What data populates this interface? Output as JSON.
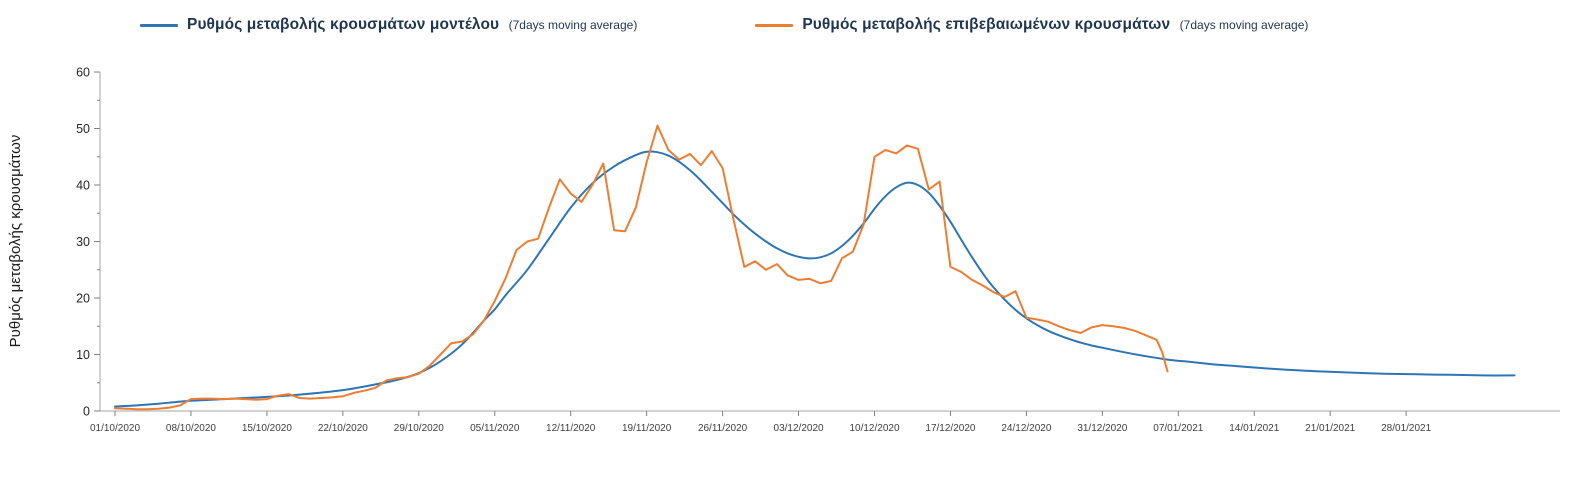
{
  "legend": {
    "items": [
      {
        "label": "Ρυθμός μεταβολής κρουσμάτων μοντέλου",
        "suffix": "(7days moving average)",
        "color": "#2E75B6"
      },
      {
        "label": "Ρυθμός μεταβολής επιβεβαιωμένων κρουσμάτων",
        "suffix": "(7days moving average)",
        "color": "#ED7D31"
      }
    ]
  },
  "chart_data": {
    "type": "line",
    "title": "",
    "xlabel": "",
    "ylabel": "Ρυθμός μεταβολής κρουσμάτων",
    "ylim": [
      0,
      60
    ],
    "y_major_ticks": [
      0,
      10,
      20,
      30,
      40,
      50,
      60
    ],
    "y_minor_tick_step": 5,
    "grid": false,
    "legend_position": "top",
    "x_tick_day_interval": 7,
    "x_tick_labels": [
      "01/10/2020",
      "08/10/2020",
      "15/10/2020",
      "22/10/2020",
      "29/10/2020",
      "05/11/2020",
      "12/11/2020",
      "19/11/2020",
      "26/11/2020",
      "03/12/2020",
      "10/12/2020",
      "17/12/2020",
      "24/12/2020",
      "31/12/2020",
      "07/01/2021",
      "14/01/2021",
      "21/01/2021",
      "28/01/2021"
    ],
    "series": [
      {
        "id": "model",
        "name": "Ρυθμός μεταβολής κρουσμάτων μοντέλου (7days moving average)",
        "color": "#2E75B6",
        "smooth": true,
        "points": [
          [
            0,
            0.8
          ],
          [
            2,
            1.0
          ],
          [
            4,
            1.3
          ],
          [
            7,
            1.8
          ],
          [
            10,
            2.1
          ],
          [
            14,
            2.5
          ],
          [
            17,
            2.9
          ],
          [
            21,
            3.7
          ],
          [
            24,
            4.7
          ],
          [
            26,
            5.5
          ],
          [
            28,
            6.7
          ],
          [
            30,
            8.8
          ],
          [
            32,
            11.8
          ],
          [
            34,
            16.0
          ],
          [
            35,
            18.0
          ],
          [
            36,
            20.5
          ],
          [
            38,
            25.0
          ],
          [
            40,
            30.5
          ],
          [
            42,
            36.0
          ],
          [
            44,
            40.3
          ],
          [
            46,
            43.3
          ],
          [
            48,
            45.3
          ],
          [
            49,
            45.9
          ],
          [
            50,
            45.8
          ],
          [
            51,
            45.2
          ],
          [
            52,
            44.1
          ],
          [
            53,
            42.6
          ],
          [
            54,
            40.8
          ],
          [
            55,
            38.8
          ],
          [
            56,
            36.8
          ],
          [
            57,
            34.8
          ],
          [
            58,
            33.0
          ],
          [
            59,
            31.4
          ],
          [
            60,
            30.0
          ],
          [
            61,
            28.8
          ],
          [
            62,
            27.9
          ],
          [
            63,
            27.3
          ],
          [
            64,
            27.0
          ],
          [
            65,
            27.2
          ],
          [
            66,
            27.9
          ],
          [
            67,
            29.2
          ],
          [
            68,
            31.0
          ],
          [
            69,
            33.2
          ],
          [
            70,
            35.8
          ],
          [
            71,
            38.0
          ],
          [
            72,
            39.6
          ],
          [
            73,
            40.4
          ],
          [
            74,
            40.0
          ],
          [
            75,
            38.6
          ],
          [
            76,
            36.3
          ],
          [
            77,
            33.5
          ],
          [
            78,
            30.3
          ],
          [
            79,
            27.2
          ],
          [
            80,
            24.3
          ],
          [
            81,
            21.8
          ],
          [
            82,
            19.7
          ],
          [
            83,
            17.9
          ],
          [
            84,
            16.4
          ],
          [
            85,
            15.2
          ],
          [
            86,
            14.2
          ],
          [
            87,
            13.4
          ],
          [
            88,
            12.7
          ],
          [
            89,
            12.1
          ],
          [
            90,
            11.6
          ],
          [
            91,
            11.2
          ],
          [
            93,
            10.4
          ],
          [
            95,
            9.7
          ],
          [
            97,
            9.1
          ],
          [
            99,
            8.7
          ],
          [
            101,
            8.3
          ],
          [
            103,
            8.0
          ],
          [
            105,
            7.7
          ],
          [
            108,
            7.3
          ],
          [
            111,
            7.0
          ],
          [
            114,
            6.8
          ],
          [
            117,
            6.6
          ],
          [
            120,
            6.5
          ],
          [
            123,
            6.4
          ],
          [
            126,
            6.3
          ],
          [
            129,
            6.3
          ]
        ]
      },
      {
        "id": "confirmed",
        "name": "Ρυθμός μεταβολής επιβεβαιωμένων κρουσμάτων (7days moving average)",
        "color": "#ED7D31",
        "smooth": false,
        "points": [
          [
            0,
            0.5
          ],
          [
            1,
            0.4
          ],
          [
            2,
            0.3
          ],
          [
            3,
            0.3
          ],
          [
            4,
            0.4
          ],
          [
            5,
            0.6
          ],
          [
            6,
            1.0
          ],
          [
            7,
            2.1
          ],
          [
            8,
            2.2
          ],
          [
            9,
            2.2
          ],
          [
            10,
            2.1
          ],
          [
            11,
            2.2
          ],
          [
            12,
            2.1
          ],
          [
            13,
            2.0
          ],
          [
            14,
            2.1
          ],
          [
            15,
            2.7
          ],
          [
            16,
            3.0
          ],
          [
            17,
            2.3
          ],
          [
            18,
            2.2
          ],
          [
            19,
            2.3
          ],
          [
            20,
            2.4
          ],
          [
            21,
            2.6
          ],
          [
            22,
            3.2
          ],
          [
            23,
            3.6
          ],
          [
            24,
            4.1
          ],
          [
            25,
            5.4
          ],
          [
            26,
            5.8
          ],
          [
            27,
            6.0
          ],
          [
            28,
            6.6
          ],
          [
            29,
            8.0
          ],
          [
            30,
            10.0
          ],
          [
            31,
            12.0
          ],
          [
            32,
            12.3
          ],
          [
            33,
            13.6
          ],
          [
            34,
            16.0
          ],
          [
            35,
            19.5
          ],
          [
            36,
            23.5
          ],
          [
            37,
            28.5
          ],
          [
            38,
            30.0
          ],
          [
            39,
            30.5
          ],
          [
            40,
            36.0
          ],
          [
            41,
            41.0
          ],
          [
            42,
            38.5
          ],
          [
            43,
            37.0
          ],
          [
            44,
            40.0
          ],
          [
            45,
            43.8
          ],
          [
            46,
            32.0
          ],
          [
            47,
            31.8
          ],
          [
            48,
            36.0
          ],
          [
            49,
            44.0
          ],
          [
            50,
            50.5
          ],
          [
            51,
            46.2
          ],
          [
            52,
            44.5
          ],
          [
            53,
            45.5
          ],
          [
            54,
            43.5
          ],
          [
            55,
            46.0
          ],
          [
            56,
            43.0
          ],
          [
            57,
            34.0
          ],
          [
            58,
            25.5
          ],
          [
            59,
            26.5
          ],
          [
            60,
            25.0
          ],
          [
            61,
            26.0
          ],
          [
            62,
            24.0
          ],
          [
            63,
            23.2
          ],
          [
            64,
            23.4
          ],
          [
            65,
            22.6
          ],
          [
            66,
            23.0
          ],
          [
            67,
            27.0
          ],
          [
            68,
            28.2
          ],
          [
            69,
            33.0
          ],
          [
            70,
            45.0
          ],
          [
            71,
            46.2
          ],
          [
            72,
            45.6
          ],
          [
            73,
            47.0
          ],
          [
            74,
            46.4
          ],
          [
            75,
            39.2
          ],
          [
            76,
            40.6
          ],
          [
            77,
            25.5
          ],
          [
            78,
            24.6
          ],
          [
            79,
            23.2
          ],
          [
            80,
            22.2
          ],
          [
            81,
            21.0
          ],
          [
            82,
            20.2
          ],
          [
            83,
            21.2
          ],
          [
            84,
            16.5
          ],
          [
            85,
            16.2
          ],
          [
            86,
            15.8
          ],
          [
            87,
            15.0
          ],
          [
            88,
            14.3
          ],
          [
            89,
            13.8
          ],
          [
            90,
            14.8
          ],
          [
            91,
            15.2
          ],
          [
            92,
            15.0
          ],
          [
            93,
            14.7
          ],
          [
            94,
            14.2
          ],
          [
            95,
            13.4
          ],
          [
            96,
            12.6
          ],
          [
            96.5,
            10.5
          ],
          [
            97,
            7.0
          ]
        ]
      }
    ]
  }
}
